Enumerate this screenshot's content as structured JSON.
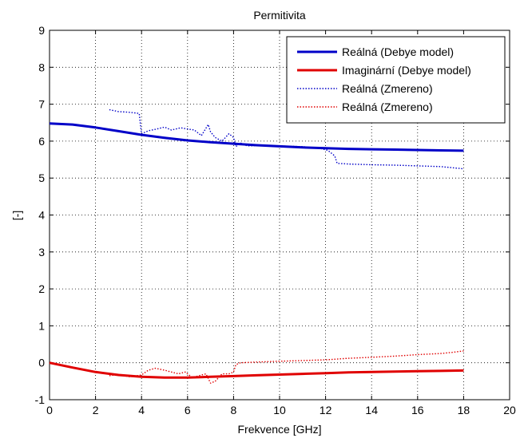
{
  "chart_data": {
    "type": "line",
    "title": "Permitivita",
    "xlabel": "Frekvence [GHz]",
    "ylabel": "[-]",
    "xlim": [
      0,
      20
    ],
    "ylim": [
      -1,
      9
    ],
    "xticks": [
      0,
      2,
      4,
      6,
      8,
      10,
      12,
      14,
      16,
      18,
      20
    ],
    "yticks": [
      -1,
      0,
      1,
      2,
      3,
      4,
      5,
      6,
      7,
      8,
      9
    ],
    "grid": true,
    "legend_position": "top-right",
    "series": [
      {
        "name": "Reálná (Debye model)",
        "color": "#0000c8",
        "style": "solid",
        "x": [
          0,
          1,
          2,
          3,
          4,
          5,
          6,
          7,
          8,
          9,
          10,
          11,
          12,
          13,
          14,
          15,
          16,
          17,
          18
        ],
        "y": [
          6.48,
          6.45,
          6.37,
          6.27,
          6.17,
          6.09,
          6.02,
          5.97,
          5.93,
          5.89,
          5.86,
          5.83,
          5.81,
          5.79,
          5.78,
          5.77,
          5.76,
          5.75,
          5.74
        ]
      },
      {
        "name": "Imaginární (Debye model)",
        "color": "#e00000",
        "style": "solid",
        "x": [
          0,
          1,
          2,
          3,
          4,
          5,
          6,
          7,
          8,
          9,
          10,
          11,
          12,
          13,
          14,
          15,
          16,
          17,
          18
        ],
        "y": [
          0.0,
          -0.13,
          -0.25,
          -0.33,
          -0.38,
          -0.4,
          -0.4,
          -0.38,
          -0.36,
          -0.34,
          -0.32,
          -0.3,
          -0.28,
          -0.26,
          -0.25,
          -0.24,
          -0.23,
          -0.22,
          -0.21
        ]
      },
      {
        "name": "Reálná (Zmereno)",
        "color": "#0000c8",
        "style": "dotted",
        "x": [
          2.6,
          3.0,
          3.5,
          3.9,
          3.95,
          4.0,
          4.3,
          4.6,
          5.0,
          5.3,
          5.7,
          6.0,
          6.3,
          6.6,
          6.9,
          7.0,
          7.2,
          7.5,
          7.8,
          8.0,
          8.1,
          8.3,
          8.6,
          9.0,
          10.0,
          11.0,
          11.8,
          12.1,
          12.4,
          12.5,
          13.0,
          14.0,
          15.0,
          16.0,
          17.0,
          17.5,
          18.0
        ],
        "y": [
          6.85,
          6.8,
          6.78,
          6.75,
          6.45,
          6.2,
          6.28,
          6.32,
          6.38,
          6.3,
          6.36,
          6.33,
          6.3,
          6.15,
          6.45,
          6.25,
          6.1,
          6.0,
          6.2,
          6.1,
          5.85,
          5.95,
          5.87,
          5.88,
          5.87,
          5.85,
          5.8,
          5.75,
          5.6,
          5.4,
          5.38,
          5.36,
          5.35,
          5.33,
          5.31,
          5.28,
          5.25
        ]
      },
      {
        "name": "Reálná (Zmereno)",
        "color": "#e00000",
        "style": "dotted",
        "x": [
          2.6,
          3.0,
          3.5,
          4.0,
          4.3,
          4.6,
          5.0,
          5.3,
          5.6,
          5.9,
          6.2,
          6.5,
          6.8,
          7.0,
          7.2,
          7.5,
          7.8,
          8.0,
          8.1,
          8.3,
          9.0,
          10.0,
          11.0,
          12.0,
          13.0,
          14.0,
          15.0,
          16.0,
          17.0,
          17.5,
          18.0
        ],
        "y": [
          -0.35,
          -0.32,
          -0.38,
          -0.33,
          -0.2,
          -0.15,
          -0.2,
          -0.25,
          -0.3,
          -0.25,
          -0.4,
          -0.35,
          -0.3,
          -0.55,
          -0.5,
          -0.3,
          -0.3,
          -0.25,
          -0.05,
          0.0,
          0.02,
          0.04,
          0.06,
          0.08,
          0.12,
          0.15,
          0.18,
          0.22,
          0.25,
          0.28,
          0.32
        ]
      }
    ]
  }
}
